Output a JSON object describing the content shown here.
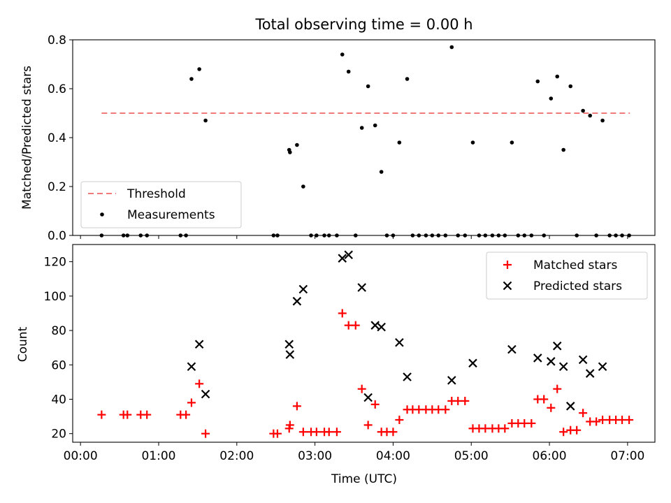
{
  "title": "Total observing time = 0.00 h",
  "colors": {
    "threshold": "#f07a7a",
    "measurement": "#000000",
    "matched": "#ff0000",
    "predicted": "#000000"
  },
  "chart_data": [
    {
      "type": "scatter",
      "ylabel": "Matched/Predicted stars",
      "xlim_hours": [
        -0.1,
        7.35
      ],
      "ylim": [
        0,
        0.8
      ],
      "yticks": [
        "0.0",
        "0.2",
        "0.4",
        "0.6",
        "0.8"
      ],
      "grid": false,
      "legend_position": "lower-left",
      "threshold": {
        "name": "Threshold",
        "y": 0.5,
        "x_range_hours": [
          0.27,
          7.03
        ]
      },
      "series": [
        {
          "name": "Measurements",
          "x_hours": [
            0.27,
            0.55,
            0.6,
            0.77,
            0.85,
            1.28,
            1.35,
            1.42,
            1.52,
            1.6,
            2.47,
            2.52,
            2.67,
            2.68,
            2.77,
            2.85,
            2.95,
            3.02,
            3.12,
            3.18,
            3.28,
            3.35,
            3.43,
            3.52,
            3.6,
            3.68,
            3.77,
            3.85,
            3.92,
            4.0,
            4.08,
            4.18,
            4.25,
            4.33,
            4.42,
            4.5,
            4.58,
            4.67,
            4.75,
            4.83,
            4.92,
            5.02,
            5.1,
            5.18,
            5.27,
            5.35,
            5.43,
            5.52,
            5.6,
            5.68,
            5.77,
            5.85,
            5.93,
            6.02,
            6.1,
            6.18,
            6.27,
            6.35,
            6.43,
            6.52,
            6.6,
            6.68,
            6.77,
            6.85,
            6.93,
            7.02
          ],
          "y": [
            0,
            0,
            0,
            0,
            0,
            0,
            0,
            0.64,
            0.68,
            0.47,
            0,
            0,
            0.35,
            0.34,
            0.37,
            0.2,
            0,
            0,
            0,
            0,
            0,
            0.74,
            0.67,
            0,
            0.44,
            0.61,
            0.45,
            0.26,
            0,
            0,
            0.38,
            0.64,
            0,
            0,
            0,
            0,
            0,
            0,
            0.77,
            0,
            0,
            0.38,
            0,
            0,
            0,
            0,
            0,
            0.38,
            0,
            0,
            0,
            0.63,
            0,
            0.56,
            0.65,
            0.35,
            0.61,
            0,
            0.51,
            0.49,
            0,
            0.47,
            0,
            0,
            0,
            0
          ]
        }
      ]
    },
    {
      "type": "scatter",
      "xlabel": "Time (UTC)",
      "ylabel": "Count",
      "xlim_hours": [
        -0.1,
        7.35
      ],
      "ylim": [
        15,
        130
      ],
      "xticks": [
        "00:00",
        "01:00",
        "02:00",
        "03:00",
        "04:00",
        "05:00",
        "06:00",
        "07:00"
      ],
      "yticks": [
        "20",
        "40",
        "60",
        "80",
        "100",
        "120"
      ],
      "grid": false,
      "legend_position": "upper-right",
      "series": [
        {
          "name": "Matched stars",
          "marker": "plus",
          "x_hours": [
            0.27,
            0.55,
            0.6,
            0.77,
            0.85,
            1.28,
            1.35,
            1.42,
            1.52,
            1.6,
            2.47,
            2.52,
            2.67,
            2.68,
            2.77,
            2.85,
            2.95,
            3.02,
            3.12,
            3.18,
            3.28,
            3.35,
            3.43,
            3.52,
            3.6,
            3.68,
            3.77,
            3.85,
            3.92,
            4.0,
            4.08,
            4.18,
            4.25,
            4.33,
            4.42,
            4.5,
            4.58,
            4.67,
            4.75,
            4.83,
            4.92,
            5.02,
            5.1,
            5.18,
            5.27,
            5.35,
            5.43,
            5.52,
            5.6,
            5.68,
            5.77,
            5.85,
            5.93,
            6.02,
            6.1,
            6.18,
            6.27,
            6.35,
            6.43,
            6.52,
            6.6,
            6.68,
            6.77,
            6.85,
            6.93,
            7.02
          ],
          "y": [
            31,
            31,
            31,
            31,
            31,
            31,
            31,
            38,
            49,
            20,
            20,
            20,
            23,
            25,
            36,
            21,
            21,
            21,
            21,
            21,
            21,
            90,
            83,
            83,
            46,
            25,
            37,
            21,
            21,
            21,
            28,
            34,
            34,
            34,
            34,
            34,
            34,
            34,
            39,
            39,
            39,
            23,
            23,
            23,
            23,
            23,
            23,
            26,
            26,
            26,
            26,
            40,
            40,
            35,
            46,
            21,
            22,
            22,
            32,
            27,
            27,
            28,
            28,
            28,
            28,
            28
          ]
        },
        {
          "name": "Predicted stars",
          "marker": "x",
          "x_hours": [
            1.42,
            1.52,
            1.6,
            2.67,
            2.68,
            2.77,
            2.85,
            3.35,
            3.43,
            3.6,
            3.68,
            3.77,
            3.85,
            4.08,
            4.18,
            4.75,
            5.02,
            5.52,
            5.85,
            6.02,
            6.1,
            6.18,
            6.27,
            6.43,
            6.52,
            6.68
          ],
          "y": [
            59,
            72,
            43,
            72,
            66,
            97,
            104,
            122,
            124,
            105,
            41,
            83,
            82,
            73,
            53,
            51,
            61,
            69,
            64,
            62,
            71,
            59,
            36,
            63,
            55,
            59
          ]
        }
      ]
    }
  ]
}
